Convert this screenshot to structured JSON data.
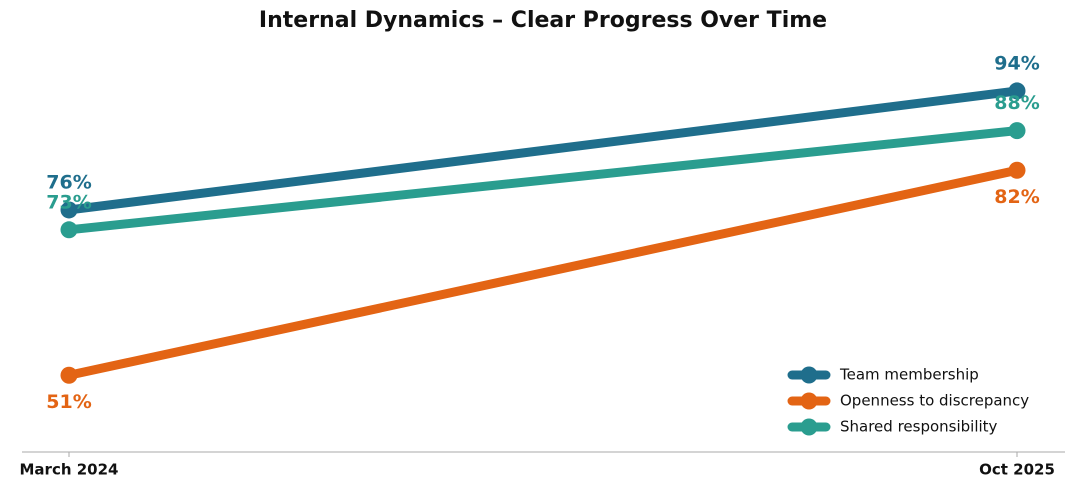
{
  "chart_data": {
    "type": "line",
    "title": "Internal Dynamics – Clear Progress Over Time",
    "categories": [
      "March 2024",
      "Oct 2025"
    ],
    "series": [
      {
        "name": "Team membership",
        "color": "#1f6e8c",
        "values": [
          76,
          94
        ],
        "value_labels": [
          "76%",
          "94%"
        ]
      },
      {
        "name": "Openness to discrepancy",
        "color": "#e36414",
        "values": [
          51,
          82
        ],
        "value_labels": [
          "51%",
          "82%"
        ]
      },
      {
        "name": "Shared responsibility",
        "color": "#2a9d8f",
        "values": [
          73,
          88
        ],
        "value_labels": [
          "73%",
          "88%"
        ]
      }
    ],
    "ylim": [
      39.4,
      101.7
    ],
    "legend": "lower right",
    "grid": false
  }
}
